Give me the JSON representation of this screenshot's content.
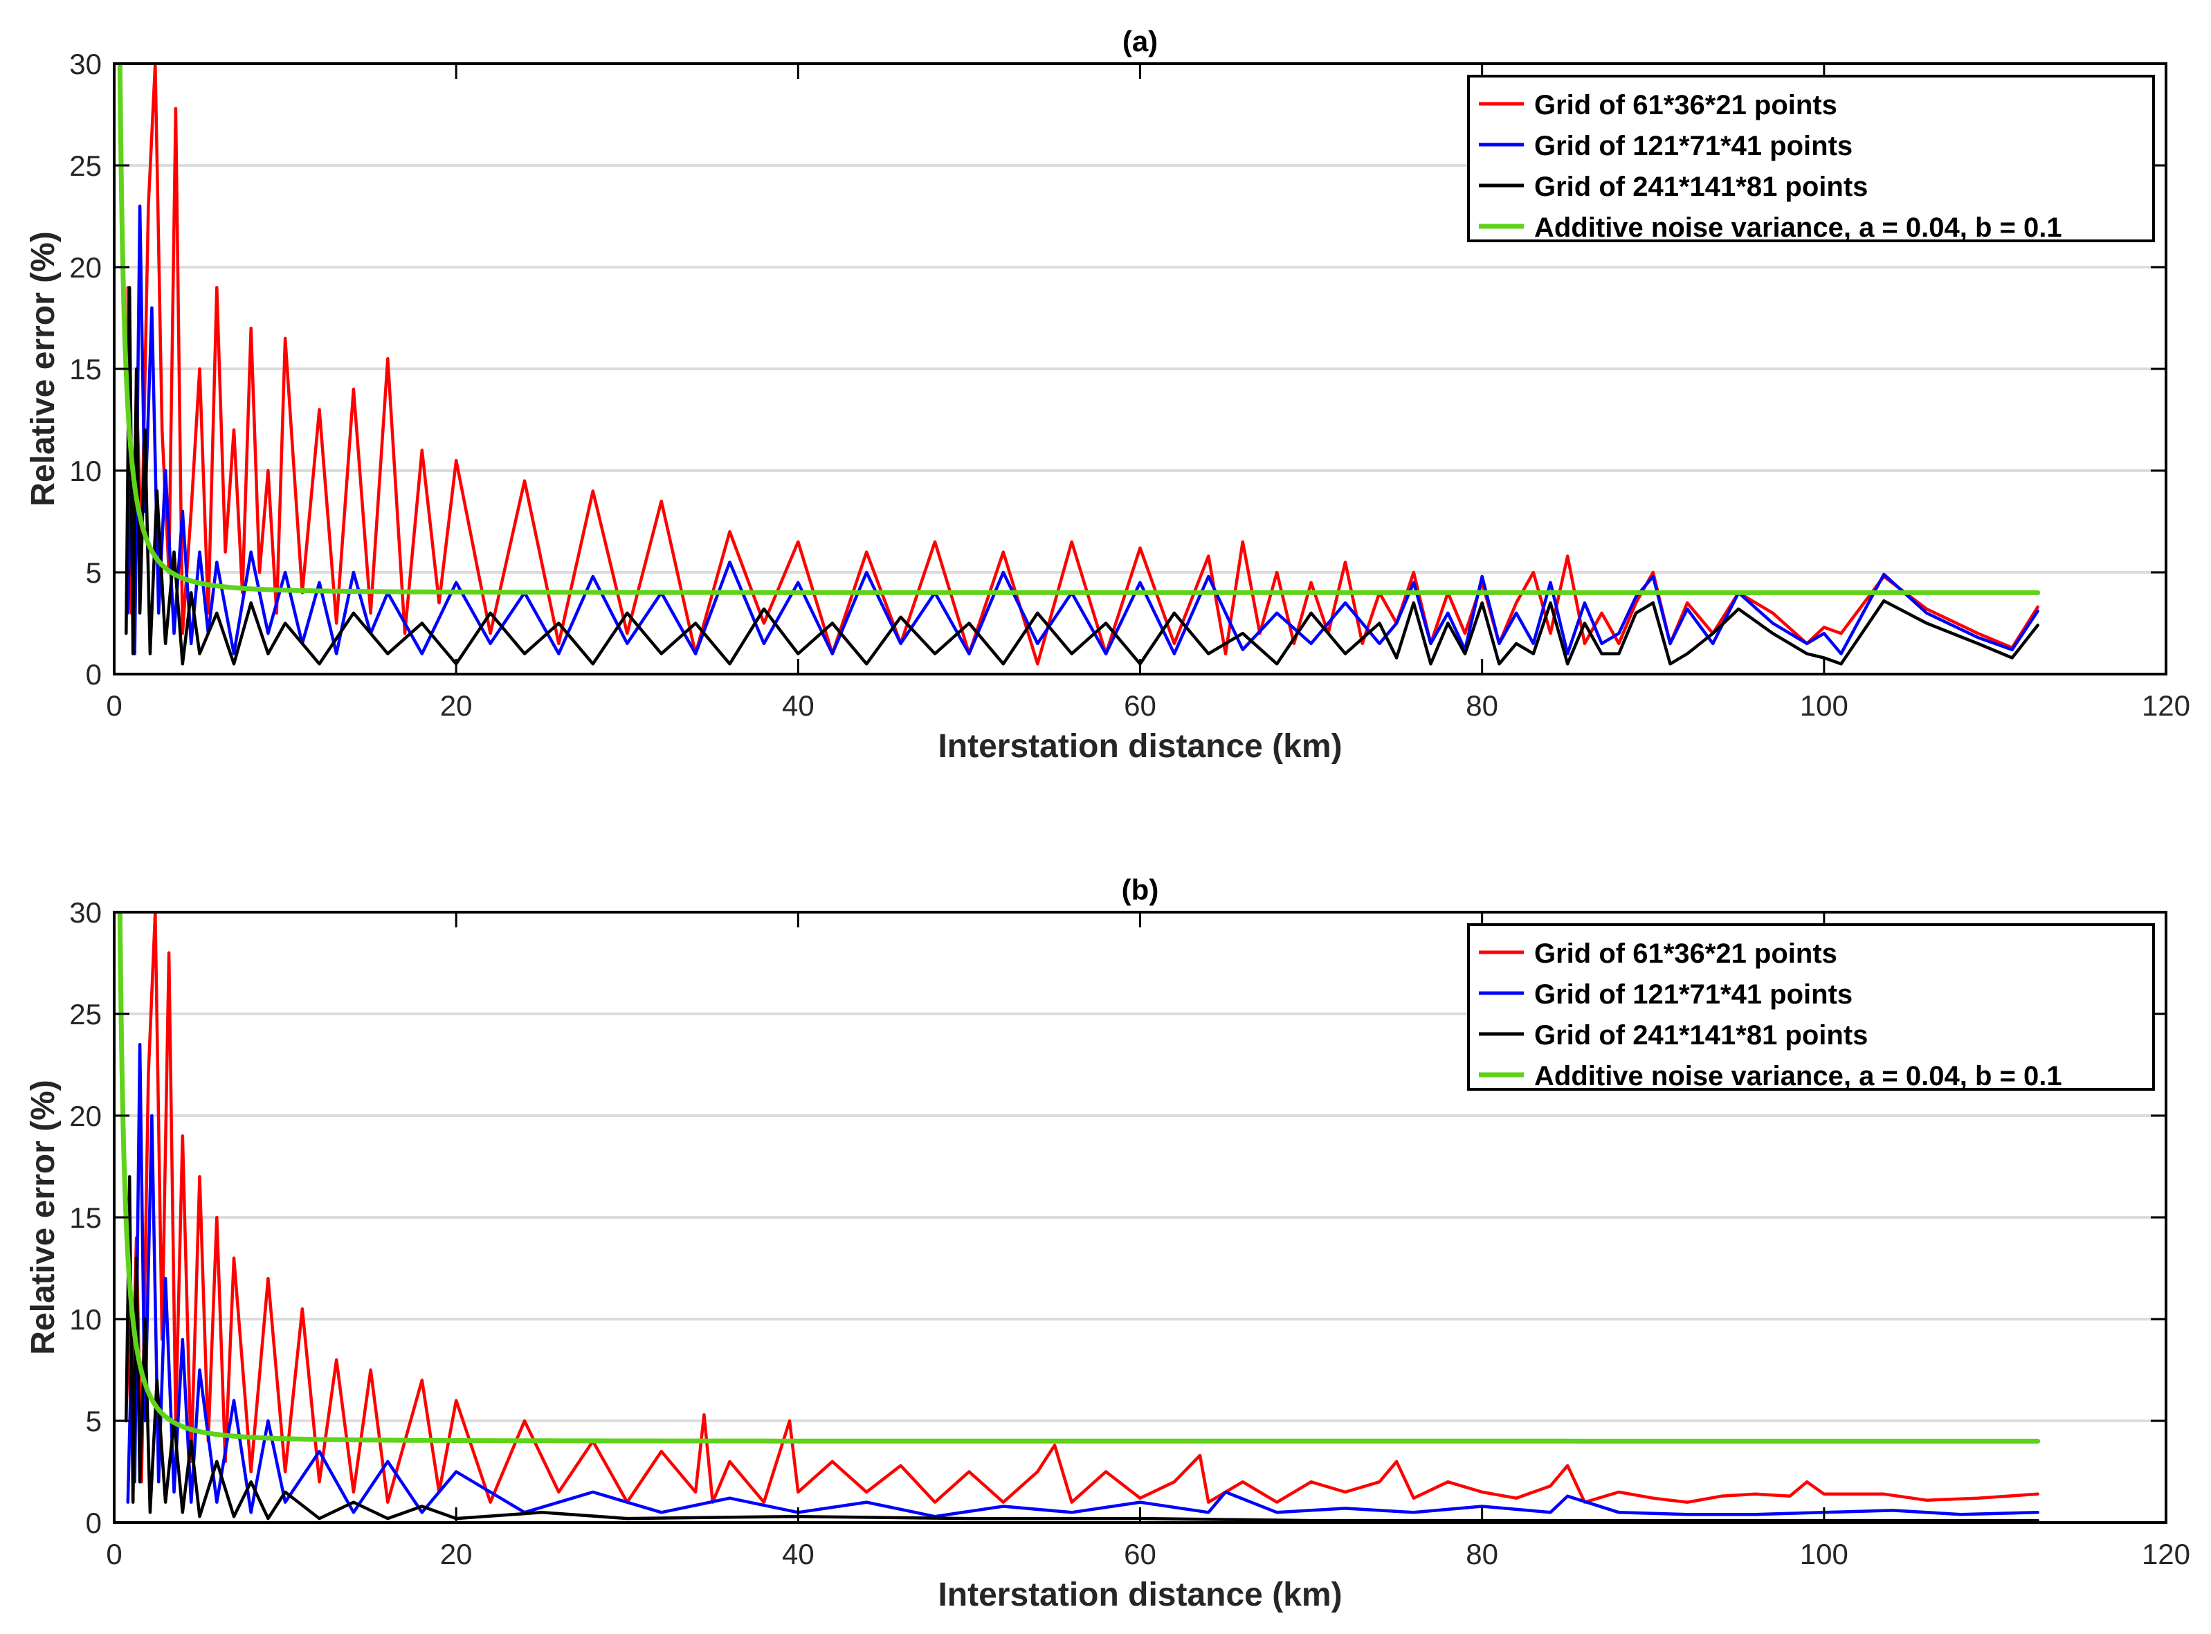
{
  "figure": {
    "colors": {
      "red": "#ff0000",
      "blue": "#0000ff",
      "black": "#000000",
      "green": "#5fd21a",
      "grid": "#dcdcdc"
    }
  },
  "chart_data": [
    {
      "type": "line",
      "panel": "a",
      "title": "(a)",
      "xlabel": "Interstation distance (km)",
      "ylabel": "Relative error (%)",
      "xlim": [
        0,
        120
      ],
      "ylim": [
        0,
        30
      ],
      "xticks": [
        "0",
        "20",
        "40",
        "60",
        "80",
        "100",
        "120"
      ],
      "yticks": [
        "0",
        "5",
        "10",
        "15",
        "20",
        "25",
        "30"
      ],
      "grid": "horizontal",
      "legend_position": "top-right",
      "series": [
        {
          "name": "Grid of 61*36*21 points",
          "color": "#ff0000",
          "x": [
            0.8,
            1.0,
            1.3,
            1.6,
            2.0,
            2.4,
            2.8,
            3.2,
            3.6,
            4.0,
            4.5,
            5.0,
            5.5,
            6.0,
            6.5,
            7.0,
            7.5,
            8.0,
            8.5,
            9.0,
            9.5,
            10.0,
            11.0,
            12.0,
            13.0,
            14.0,
            15.0,
            16.0,
            17.0,
            18.0,
            19.0,
            20.0,
            22.0,
            24.0,
            26.0,
            28.0,
            30.0,
            32.0,
            34.0,
            36.0,
            38.0,
            40.0,
            42.0,
            44.0,
            46.0,
            48.0,
            50.0,
            52.0,
            54.0,
            56.0,
            58.0,
            60.0,
            62.0,
            64.0,
            65.0,
            66.0,
            67.0,
            68.0,
            69.0,
            70.0,
            71.0,
            72.0,
            73.0,
            74.0,
            75.0,
            76.0,
            77.0,
            78.0,
            79.0,
            80.0,
            81.0,
            82.0,
            83.0,
            84.0,
            85.0,
            86.0,
            87.0,
            88.0,
            89.0,
            90.0,
            91.0,
            92.0,
            93.5,
            95.0,
            97.0,
            99.0,
            100.0,
            101.0,
            103.5,
            106.0,
            109.0,
            111.0,
            112.5
          ],
          "y": [
            19.0,
            3.0,
            14.0,
            6.0,
            23.0,
            30.0,
            12.0,
            5.0,
            27.8,
            2.0,
            8.0,
            15.0,
            3.0,
            19.0,
            6.0,
            12.0,
            4.0,
            17.0,
            5.0,
            10.0,
            3.0,
            16.5,
            4.0,
            13.0,
            2.5,
            14.0,
            3.0,
            15.5,
            2.0,
            11.0,
            3.5,
            10.5,
            2.0,
            9.5,
            1.5,
            9.0,
            2.0,
            8.5,
            1.0,
            7.0,
            2.5,
            6.5,
            1.0,
            6.0,
            1.5,
            6.5,
            1.0,
            6.0,
            0.5,
            6.5,
            1.0,
            6.2,
            1.5,
            5.8,
            1.0,
            6.5,
            2.0,
            5.0,
            1.5,
            4.5,
            2.0,
            5.5,
            1.5,
            4.0,
            2.5,
            5.0,
            1.5,
            4.0,
            2.0,
            4.5,
            1.5,
            3.5,
            5.0,
            2.0,
            5.8,
            1.5,
            3.0,
            1.5,
            3.5,
            5.0,
            1.5,
            3.5,
            2.0,
            4.0,
            3.0,
            1.5,
            2.3,
            2.0,
            4.8,
            3.2,
            2.0,
            1.3,
            3.3
          ]
        },
        {
          "name": "Grid of 121*71*41 points",
          "color": "#0000ff",
          "x": [
            0.8,
            1.0,
            1.2,
            1.5,
            1.8,
            2.2,
            2.6,
            3.0,
            3.5,
            4.0,
            4.5,
            5.0,
            5.5,
            6.0,
            7.0,
            8.0,
            9.0,
            10.0,
            11.0,
            12.0,
            13.0,
            14.0,
            15.0,
            16.0,
            18.0,
            20.0,
            22.0,
            24.0,
            26.0,
            28.0,
            30.0,
            32.0,
            34.0,
            36.0,
            38.0,
            40.0,
            42.0,
            44.0,
            46.0,
            48.0,
            50.0,
            52.0,
            54.0,
            56.0,
            58.0,
            60.0,
            62.0,
            64.0,
            66.0,
            68.0,
            70.0,
            72.0,
            74.0,
            75.0,
            76.0,
            77.0,
            78.0,
            79.0,
            80.0,
            81.0,
            82.0,
            83.0,
            84.0,
            85.0,
            86.0,
            87.0,
            88.0,
            89.0,
            90.0,
            91.0,
            92.0,
            93.5,
            95.0,
            97.0,
            99.0,
            100.0,
            101.0,
            103.5,
            106.0,
            109.0,
            111.0,
            112.5
          ],
          "y": [
            3.0,
            11.0,
            1.0,
            23.0,
            8.0,
            18.0,
            3.0,
            10.0,
            2.0,
            8.0,
            1.5,
            6.0,
            2.0,
            5.5,
            1.0,
            6.0,
            2.0,
            5.0,
            1.5,
            4.5,
            1.0,
            5.0,
            2.0,
            4.0,
            1.0,
            4.5,
            1.5,
            4.0,
            1.0,
            4.8,
            1.5,
            4.0,
            1.0,
            5.5,
            1.5,
            4.5,
            1.0,
            5.0,
            1.5,
            4.0,
            1.0,
            5.0,
            1.5,
            4.0,
            1.0,
            4.5,
            1.0,
            4.8,
            1.2,
            3.0,
            1.5,
            3.5,
            1.5,
            2.5,
            4.5,
            1.5,
            3.0,
            1.2,
            4.8,
            1.5,
            3.0,
            1.5,
            4.5,
            1.0,
            3.5,
            1.5,
            2.0,
            3.8,
            4.8,
            1.5,
            3.2,
            1.5,
            4.0,
            2.5,
            1.5,
            2.0,
            1.0,
            4.9,
            3.0,
            1.8,
            1.2,
            3.1
          ]
        },
        {
          "name": "Grid of 241*141*81 points",
          "color": "#000000",
          "x": [
            0.7,
            0.9,
            1.1,
            1.3,
            1.5,
            1.8,
            2.1,
            2.5,
            3.0,
            3.5,
            4.0,
            4.5,
            5.0,
            6.0,
            7.0,
            8.0,
            9.0,
            10.0,
            12.0,
            14.0,
            16.0,
            18.0,
            20.0,
            22.0,
            24.0,
            26.0,
            28.0,
            30.0,
            32.0,
            34.0,
            36.0,
            38.0,
            40.0,
            42.0,
            44.0,
            46.0,
            48.0,
            50.0,
            52.0,
            54.0,
            56.0,
            58.0,
            60.0,
            62.0,
            64.0,
            66.0,
            68.0,
            70.0,
            72.0,
            74.0,
            75.0,
            76.0,
            77.0,
            78.0,
            79.0,
            80.0,
            81.0,
            82.0,
            83.0,
            84.0,
            85.0,
            86.0,
            87.0,
            88.0,
            89.0,
            90.0,
            91.0,
            92.0,
            93.5,
            95.0,
            97.0,
            99.0,
            100.0,
            101.0,
            103.5,
            106.0,
            109.0,
            111.0,
            112.5
          ],
          "y": [
            2.0,
            19.0,
            1.0,
            15.0,
            3.0,
            12.0,
            1.0,
            9.0,
            1.5,
            6.0,
            0.5,
            4.0,
            1.0,
            3.0,
            0.5,
            3.5,
            1.0,
            2.5,
            0.5,
            3.0,
            1.0,
            2.5,
            0.5,
            3.0,
            1.0,
            2.5,
            0.5,
            3.0,
            1.0,
            2.5,
            0.5,
            3.2,
            1.0,
            2.5,
            0.5,
            2.8,
            1.0,
            2.5,
            0.5,
            3.0,
            1.0,
            2.5,
            0.5,
            3.0,
            1.0,
            2.0,
            0.5,
            3.0,
            1.0,
            2.5,
            0.8,
            3.5,
            0.5,
            2.5,
            1.0,
            3.5,
            0.5,
            1.5,
            1.0,
            3.5,
            0.5,
            2.5,
            1.0,
            1.0,
            3.0,
            3.5,
            0.5,
            1.0,
            2.0,
            3.2,
            2.0,
            1.0,
            0.8,
            0.5,
            3.6,
            2.5,
            1.5,
            0.8,
            2.4
          ]
        },
        {
          "name": "Additive noise variance, a = 0.04, b = 0.1",
          "color": "#5fd21a",
          "model": "sqrt(a^2 + (b/x)^2) * 100",
          "x_range": [
            0.3,
            112.5
          ]
        }
      ]
    },
    {
      "type": "line",
      "panel": "b",
      "title": "(b)",
      "xlabel": "Interstation distance (km)",
      "ylabel": "Relative error (%)",
      "xlim": [
        0,
        120
      ],
      "ylim": [
        0,
        30
      ],
      "xticks": [
        "0",
        "20",
        "40",
        "60",
        "80",
        "100",
        "120"
      ],
      "yticks": [
        "0",
        "5",
        "10",
        "15",
        "20",
        "25",
        "30"
      ],
      "grid": "horizontal",
      "legend_position": "top-right",
      "series": [
        {
          "name": "Grid of 61*36*21 points",
          "color": "#ff0000",
          "x": [
            0.8,
            1.0,
            1.3,
            1.6,
            2.0,
            2.4,
            2.8,
            3.2,
            3.6,
            4.0,
            4.5,
            5.0,
            5.5,
            6.0,
            6.5,
            7.0,
            8.0,
            9.0,
            10.0,
            11.0,
            12.0,
            13.0,
            14.0,
            15.0,
            16.0,
            18.0,
            19.0,
            20.0,
            22.0,
            24.0,
            26.0,
            28.0,
            30.0,
            32.0,
            34.0,
            34.5,
            35.0,
            36.0,
            38.0,
            39.5,
            40.0,
            42.0,
            44.0,
            46.0,
            48.0,
            50.0,
            52.0,
            54.0,
            55.0,
            56.0,
            58.0,
            60.0,
            62.0,
            63.5,
            64.0,
            66.0,
            68.0,
            70.0,
            72.0,
            74.0,
            75.0,
            76.0,
            78.0,
            80.0,
            82.0,
            84.0,
            85.0,
            86.0,
            88.0,
            90.0,
            92.0,
            94.0,
            96.0,
            98.0,
            99.0,
            100.0,
            103.5,
            106.0,
            109.0,
            112.5
          ],
          "y": [
            10.0,
            4.0,
            14.0,
            2.0,
            22.0,
            30.0,
            9.0,
            28.0,
            5.0,
            19.0,
            3.0,
            17.0,
            4.0,
            15.0,
            3.0,
            13.0,
            2.5,
            12.0,
            2.5,
            10.5,
            2.0,
            8.0,
            1.5,
            7.5,
            1.0,
            7.0,
            1.5,
            6.0,
            1.0,
            5.0,
            1.5,
            4.0,
            1.0,
            3.5,
            1.5,
            5.3,
            1.0,
            3.0,
            1.0,
            5.0,
            1.5,
            3.0,
            1.5,
            2.8,
            1.0,
            2.5,
            1.0,
            2.5,
            3.8,
            1.0,
            2.5,
            1.2,
            2.0,
            3.3,
            1.0,
            2.0,
            1.0,
            2.0,
            1.5,
            2.0,
            3.0,
            1.2,
            2.0,
            1.5,
            1.2,
            1.8,
            2.8,
            1.0,
            1.5,
            1.2,
            1.0,
            1.3,
            1.4,
            1.3,
            2.0,
            1.4,
            1.4,
            1.1,
            1.2,
            1.4
          ]
        },
        {
          "name": "Grid of 121*71*41 points",
          "color": "#0000ff",
          "x": [
            0.8,
            1.0,
            1.2,
            1.5,
            1.8,
            2.2,
            2.6,
            3.0,
            3.5,
            4.0,
            4.5,
            5.0,
            6.0,
            7.0,
            8.0,
            9.0,
            10.0,
            12.0,
            14.0,
            16.0,
            18.0,
            20.0,
            24.0,
            28.0,
            32.0,
            36.0,
            40.0,
            44.0,
            48.0,
            52.0,
            56.0,
            60.0,
            64.0,
            65.0,
            68.0,
            72.0,
            76.0,
            80.0,
            84.0,
            85.0,
            88.0,
            92.0,
            96.0,
            100.0,
            104.0,
            108.0,
            112.5
          ],
          "y": [
            1.0,
            8.0,
            2.0,
            23.5,
            5.0,
            20.0,
            2.0,
            12.0,
            1.5,
            9.0,
            1.0,
            7.5,
            1.0,
            6.0,
            0.5,
            5.0,
            1.0,
            3.5,
            0.5,
            3.0,
            0.5,
            2.5,
            0.5,
            1.5,
            0.5,
            1.2,
            0.5,
            1.0,
            0.3,
            0.8,
            0.5,
            1.0,
            0.5,
            1.5,
            0.5,
            0.7,
            0.5,
            0.8,
            0.5,
            1.3,
            0.5,
            0.4,
            0.4,
            0.5,
            0.6,
            0.4,
            0.5
          ]
        },
        {
          "name": "Grid of 241*141*81 points",
          "color": "#000000",
          "x": [
            0.7,
            0.9,
            1.1,
            1.3,
            1.5,
            1.8,
            2.1,
            2.5,
            3.0,
            3.5,
            4.0,
            4.5,
            5.0,
            6.0,
            7.0,
            8.0,
            9.0,
            10.0,
            12.0,
            14.0,
            16.0,
            18.0,
            20.0,
            25.0,
            30.0,
            40.0,
            50.0,
            60.0,
            70.0,
            80.0,
            90.0,
            100.0,
            112.5
          ],
          "y": [
            5.0,
            17.0,
            1.0,
            13.0,
            2.0,
            10.0,
            0.5,
            7.0,
            1.0,
            5.0,
            0.5,
            4.0,
            0.3,
            3.0,
            0.3,
            2.0,
            0.2,
            1.5,
            0.2,
            1.0,
            0.2,
            0.8,
            0.2,
            0.5,
            0.2,
            0.3,
            0.2,
            0.2,
            0.1,
            0.1,
            0.1,
            0.1,
            0.1
          ]
        },
        {
          "name": "Additive noise variance, a = 0.04, b = 0.1",
          "color": "#5fd21a",
          "model": "sqrt(a^2 + (b/x)^2) * 100",
          "x_range": [
            0.3,
            112.5
          ]
        }
      ]
    }
  ]
}
